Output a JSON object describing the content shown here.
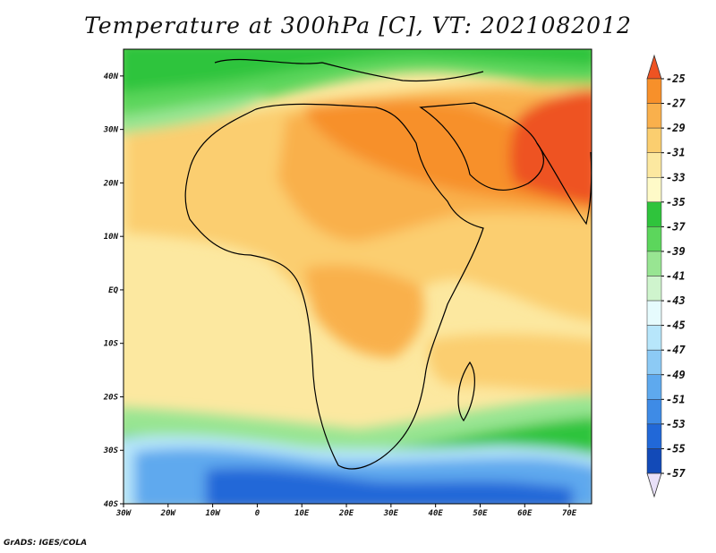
{
  "title": "Temperature at 300hPa [C], VT: 2021082012",
  "footer": "GrADS: IGES/COLA",
  "map": {
    "variable": "Temperature at 300hPa",
    "units": "C",
    "valid_time": "2021082012",
    "lon_range": [
      -30,
      75
    ],
    "lat_range": [
      -40,
      45
    ],
    "lon_ticks": [
      {
        "value": -30,
        "label": "30W"
      },
      {
        "value": -20,
        "label": "20W"
      },
      {
        "value": -10,
        "label": "10W"
      },
      {
        "value": 0,
        "label": "0"
      },
      {
        "value": 10,
        "label": "10E"
      },
      {
        "value": 20,
        "label": "20E"
      },
      {
        "value": 30,
        "label": "30E"
      },
      {
        "value": 40,
        "label": "40E"
      },
      {
        "value": 50,
        "label": "50E"
      },
      {
        "value": 60,
        "label": "60E"
      },
      {
        "value": 70,
        "label": "70E"
      }
    ],
    "lat_ticks": [
      {
        "value": 40,
        "label": "40N"
      },
      {
        "value": 30,
        "label": "30N"
      },
      {
        "value": 20,
        "label": "20N"
      },
      {
        "value": 10,
        "label": "10N"
      },
      {
        "value": 0,
        "label": "EQ"
      },
      {
        "value": -10,
        "label": "10S"
      },
      {
        "value": -20,
        "label": "20S"
      },
      {
        "value": -30,
        "label": "30S"
      },
      {
        "value": -40,
        "label": "40S"
      }
    ]
  },
  "colorbar": {
    "labels": [
      "-25",
      "-27",
      "-29",
      "-31",
      "-33",
      "-35",
      "-37",
      "-39",
      "-41",
      "-43",
      "-45",
      "-47",
      "-49",
      "-51",
      "-53",
      "-55",
      "-57"
    ],
    "colors": [
      "#ee5322",
      "#f7902a",
      "#f9b04c",
      "#fbce6f",
      "#fce8a0",
      "#fefac8",
      "#2fc43c",
      "#5cd65c",
      "#98e592",
      "#cff4cd",
      "#e6fbfd",
      "#b7e6fb",
      "#8ccaf5",
      "#5ea9ee",
      "#3e8be6",
      "#2168d8",
      "#124ab8",
      "#0a2a82"
    ]
  }
}
